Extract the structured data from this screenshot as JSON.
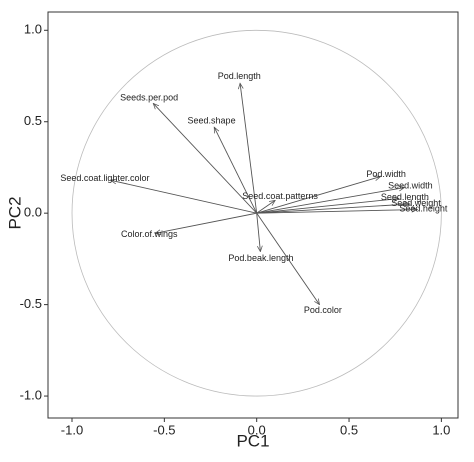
{
  "chart_data": {
    "type": "biplot",
    "x_label": "PC1",
    "y_label": "PC2",
    "xlim": [
      -1.13,
      1.09
    ],
    "ylim": [
      -1.12,
      1.1
    ],
    "xticks": [
      {
        "value": -1,
        "label": "-1.0"
      },
      {
        "value": -0.5,
        "label": "-0.5"
      },
      {
        "value": 0,
        "label": "0.0"
      },
      {
        "value": 0.5,
        "label": "0.5"
      },
      {
        "value": 1,
        "label": "1.0"
      }
    ],
    "yticks": [
      {
        "value": -1,
        "label": "-1.0"
      },
      {
        "value": -0.5,
        "label": "-0.5"
      },
      {
        "value": 0,
        "label": "0.0"
      },
      {
        "value": 0.5,
        "label": "0.5"
      },
      {
        "value": 1,
        "label": "1.0"
      }
    ],
    "color": "#555555",
    "labels": [
      "Pod.length",
      "Seeds.per.pod",
      "Seed.shape",
      "Pod.width",
      "Seed.width",
      "Seed.length",
      "Seed.weight",
      "Seed.height",
      "Seed.coat.lighter.color",
      "Seed.coat.patterns",
      "Color.of.wings",
      "Pod.beak.length",
      "Pod.color"
    ],
    "x": [
      -0.09,
      -0.56,
      -0.23,
      0.67,
      0.8,
      0.77,
      0.83,
      0.87,
      -0.79,
      0.1,
      -0.55,
      0.02,
      0.34
    ],
    "y": [
      0.71,
      0.6,
      0.47,
      0.2,
      0.14,
      0.08,
      0.05,
      0.02,
      0.18,
      0.07,
      -0.11,
      -0.21,
      -0.5
    ]
  }
}
